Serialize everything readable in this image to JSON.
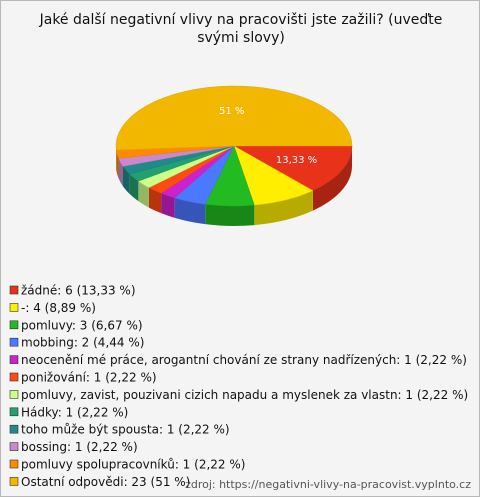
{
  "chart_data": {
    "type": "pie3d",
    "title": "Jaké další negativní vlivy na pracovišti jste zažili? (uveďte svými slovy)",
    "categories": [
      "žádné: 6 (13,33 %)",
      "-: 4 (8,89 %)",
      "pomluvy: 3 (6,67 %)",
      "mobbing: 2 (4,44 %)",
      "neocenění mé práce, arogantní chování ze strany nadřízených: 1 (2,22 %)",
      "ponižování: 1 (2,22 %)",
      "pomluvy, zavist, pouzivani cizich napadu a myslenek za vlastn: 1 (2,22 %)",
      "Hádky: 1 (2,22 %)",
      "toho může být spousta: 1 (2,22 %)",
      "bossing: 1 (2,22 %)",
      "pomluvy spolupracovníků: 1 (2,22 %)",
      "Ostatní odpovědi: 23 (51 %)"
    ],
    "values": [
      13.33,
      8.89,
      6.67,
      4.44,
      2.22,
      2.22,
      2.22,
      2.22,
      2.22,
      2.22,
      2.22,
      51
    ],
    "value_labels": [
      "13,33 %",
      null,
      null,
      null,
      null,
      null,
      null,
      null,
      null,
      null,
      null,
      "51 %"
    ],
    "colors": [
      "#e8321a",
      "#ffee00",
      "#22bb22",
      "#4a78ff",
      "#cc22cc",
      "#ff4a10",
      "#ccff88",
      "#22a070",
      "#1f8a8a",
      "#cc88cc",
      "#ff8a00",
      "#f2b800"
    ],
    "source": "zdroj: https://negativni-vlivy-na-pracovist.vyplnto.cz"
  }
}
